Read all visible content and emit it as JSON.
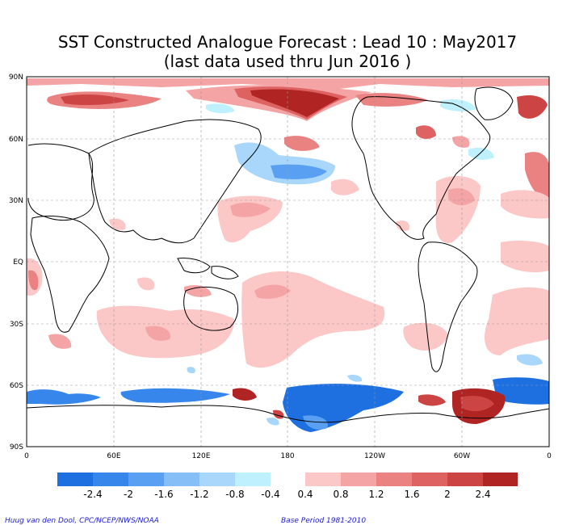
{
  "title_line1": "SST Constructed Analogue Forecast : Lead 10 : May2017",
  "title_line2": "(last data used thru Jun 2016 )",
  "lat_labels": [
    "90N",
    "60N",
    "30N",
    "EQ",
    "30S",
    "60S",
    "90S"
  ],
  "lon_labels": [
    "0",
    "60E",
    "120E",
    "180",
    "120W",
    "60W",
    "0"
  ],
  "colorbar": {
    "labels": [
      "-2.4",
      "-2",
      "-1.6",
      "-1.2",
      "-0.8",
      "-0.4",
      "0.4",
      "0.8",
      "1.2",
      "1.6",
      "2",
      "2.4"
    ],
    "negative_colors": [
      "#1e6fe0",
      "#3786ec",
      "#5aa0f2",
      "#86bef7",
      "#a9d7fb",
      "#bff0fd"
    ],
    "positive_colors": [
      "#fbc7c7",
      "#f4a4a4",
      "#ea8282",
      "#de6262",
      "#cd4444",
      "#b02424"
    ]
  },
  "credit_left": "Huug van den Dool, CPC/NCEP/NWS/NOAA",
  "credit_right": "Base Period 1981-2010",
  "icons": {
    "map": "world-sst-anomaly-map"
  }
}
